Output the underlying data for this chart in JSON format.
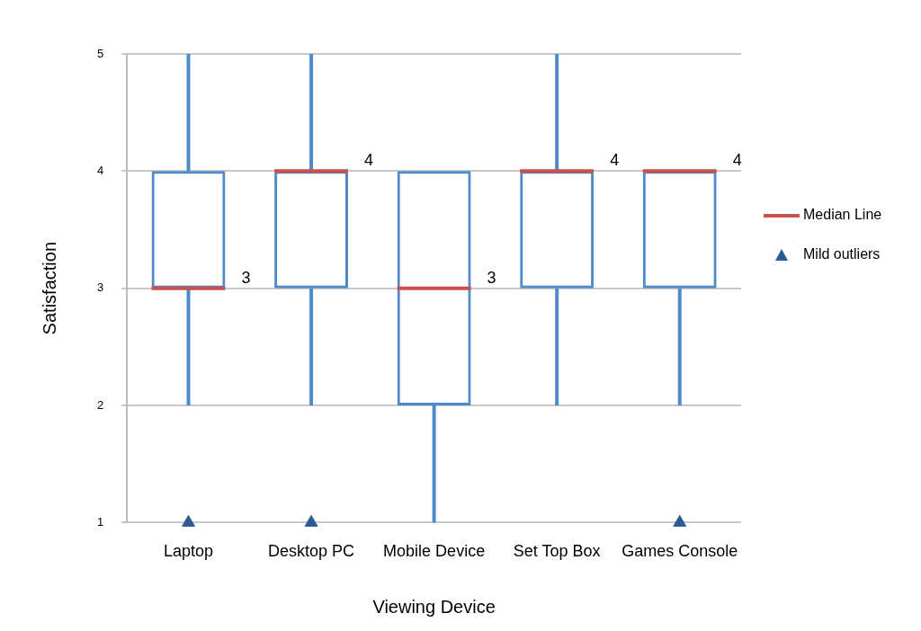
{
  "chart_data": {
    "type": "box",
    "xlabel": "Viewing Device",
    "ylabel": "Satisfaction",
    "categories": [
      "Laptop",
      "Desktop PC",
      "Mobile Device",
      "Set Top Box",
      "Games Console"
    ],
    "ylim": [
      1,
      5
    ],
    "yticks": [
      1,
      2,
      3,
      4,
      5
    ],
    "grid": "y",
    "legend": "right",
    "annotations": [
      "Median Line"
    ],
    "series": [
      {
        "color": "#4f8ac9",
        "boxes": [
          {
            "low": 2,
            "q1": 3,
            "median": 3,
            "q3": 4,
            "high": 5
          },
          {
            "low": 2,
            "q1": 3,
            "median": 4,
            "q3": 4,
            "high": 5
          },
          {
            "low": 1,
            "q1": 2,
            "median": 3,
            "q3": 4,
            "high": 4
          },
          {
            "low": 2,
            "q1": 3,
            "median": 4,
            "q3": 4,
            "high": 5
          },
          {
            "low": 2,
            "q1": 3,
            "median": 4,
            "q3": 4,
            "high": 4
          }
        ],
        "value_labels": [
          "3",
          "4",
          "3",
          "4",
          "4"
        ]
      },
      {
        "type": "scatter",
        "name": "Mild outliers",
        "color": "#2c5a93",
        "marker": "triangle",
        "x": [
          "Laptop",
          "Desktop PC",
          "Games Console"
        ],
        "values": [
          1,
          1,
          1
        ]
      }
    ]
  }
}
